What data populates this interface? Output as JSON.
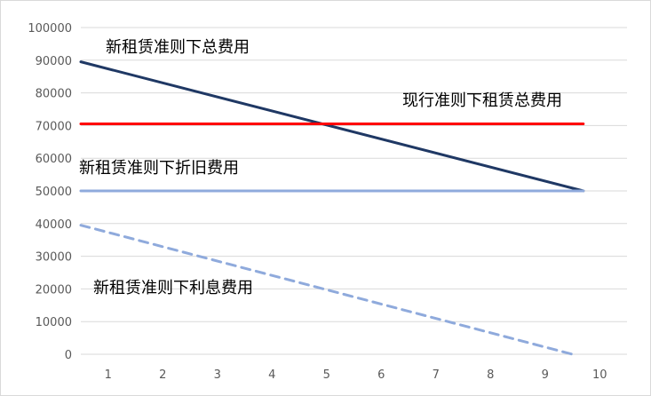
{
  "chart_data": {
    "type": "line",
    "title": "",
    "xlabel": "",
    "ylabel": "",
    "x_ticks": [
      "1",
      "2",
      "3",
      "4",
      "5",
      "6",
      "7",
      "8",
      "9",
      "10"
    ],
    "y_ticks": [
      "0",
      "10000",
      "20000",
      "30000",
      "40000",
      "50000",
      "60000",
      "70000",
      "80000",
      "90000",
      "100000"
    ],
    "xlim": [
      0,
      10
    ],
    "ylim": [
      0,
      100000
    ],
    "grid": "horizontal",
    "legend": "none",
    "series": [
      {
        "name": "新租赁准则下总费用",
        "style": "solid",
        "color": "#1f3864",
        "x": [
          0,
          9.2
        ],
        "y": [
          89500,
          50000
        ]
      },
      {
        "name": "现行准则下租赁总费用",
        "style": "solid",
        "color": "#ff0000",
        "x": [
          0,
          9.2
        ],
        "y": [
          70500,
          70500
        ]
      },
      {
        "name": "新租赁准则下折旧费用",
        "style": "solid",
        "color": "#8faadc",
        "x": [
          0,
          9.2
        ],
        "y": [
          50000,
          50000
        ]
      },
      {
        "name": "新租赁准则下利息费用",
        "style": "dashed",
        "color": "#8faadc",
        "x": [
          0,
          9
        ],
        "y": [
          39500,
          0
        ]
      }
    ],
    "annotations": [
      {
        "text": "新租赁准则下总费用",
        "series": 0
      },
      {
        "text": "现行准则下租赁总费用",
        "series": 1
      },
      {
        "text": "新租赁准则下折旧费用",
        "series": 2
      },
      {
        "text": "新租赁准则下利息费用",
        "series": 3
      }
    ]
  }
}
